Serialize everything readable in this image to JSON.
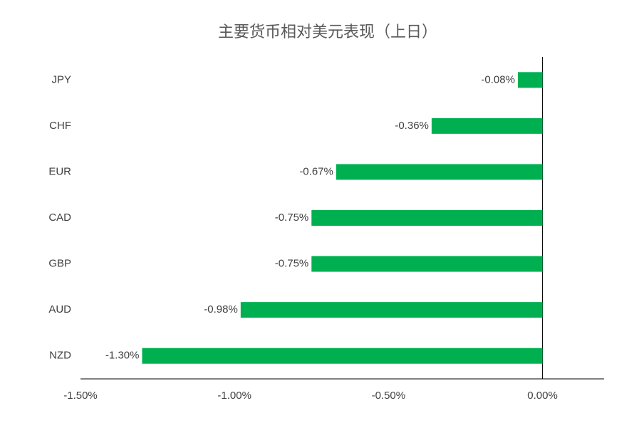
{
  "chart_data": {
    "type": "hbar",
    "title": "主要货币相对美元表现（上日）",
    "categories": [
      "JPY",
      "CHF",
      "EUR",
      "CAD",
      "GBP",
      "AUD",
      "NZD"
    ],
    "values": [
      -0.08,
      -0.36,
      -0.67,
      -0.75,
      -0.75,
      -0.98,
      -1.3
    ],
    "value_labels": [
      "-0.08%",
      "-0.36%",
      "-0.67%",
      "-0.75%",
      "-0.75%",
      "-0.98%",
      "-1.30%"
    ],
    "color": "#00b050",
    "xlim": [
      -1.5,
      0.2
    ],
    "xticks": [
      {
        "value": -1.5,
        "label": "-1.50%"
      },
      {
        "value": -1.0,
        "label": "-1.00%"
      },
      {
        "value": -0.5,
        "label": "-0.50%"
      },
      {
        "value": 0,
        "label": "0.00%"
      }
    ],
    "grid": false
  }
}
